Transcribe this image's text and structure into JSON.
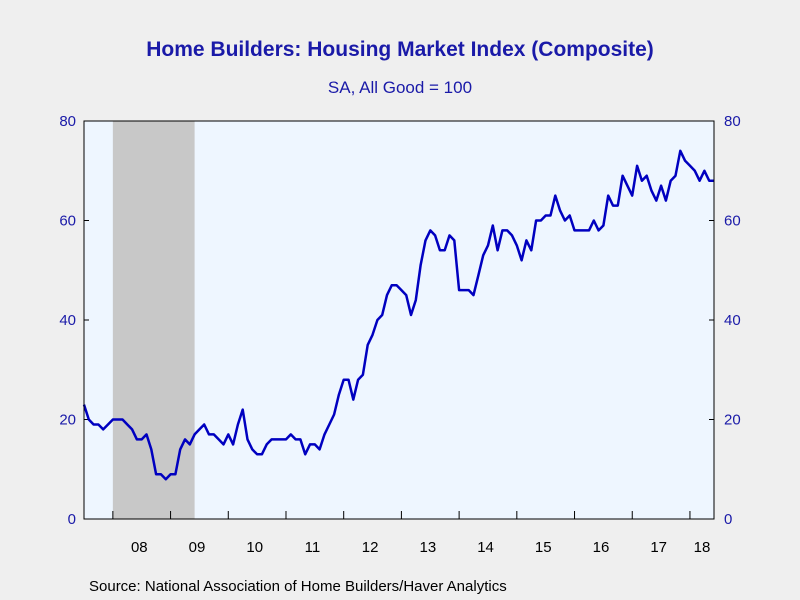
{
  "chart_data": {
    "type": "line",
    "title": "Home Builders: Housing Market Index (Composite)",
    "subtitle": "SA, All Good = 100",
    "source": "Source:  National Association of Home Builders/Haver Analytics",
    "xlabel": "",
    "ylabel": "",
    "ylim": [
      0,
      80
    ],
    "y_ticks": [
      0,
      20,
      40,
      60,
      80
    ],
    "x_ticks": [
      "08",
      "09",
      "10",
      "11",
      "12",
      "13",
      "14",
      "15",
      "16",
      "17",
      "18"
    ],
    "x_range": [
      "2007-07",
      "2018-06"
    ],
    "grid": false,
    "axes": "left and right, same scale",
    "recession_shading": {
      "start": "2008-01",
      "end": "2009-06",
      "color": "#c8c8c8"
    },
    "plot_background": "#eef6ff",
    "series": [
      {
        "color": "#0000c0",
        "start": "2007-07",
        "frequency": "monthly",
        "values": [
          23,
          20,
          19,
          19,
          18,
          19,
          20,
          20,
          20,
          19,
          18,
          16,
          16,
          17,
          14,
          9,
          9,
          8,
          9,
          9,
          14,
          16,
          15,
          17,
          18,
          19,
          17,
          17,
          16,
          15,
          17,
          15,
          19,
          22,
          16,
          14,
          13,
          13,
          15,
          16,
          16,
          16,
          16,
          17,
          16,
          16,
          13,
          15,
          15,
          14,
          17,
          19,
          21,
          25,
          28,
          28,
          24,
          28,
          29,
          35,
          37,
          40,
          41,
          45,
          47,
          47,
          46,
          45,
          41,
          44,
          51,
          56,
          58,
          57,
          54,
          54,
          57,
          56,
          46,
          46,
          46,
          45,
          49,
          53,
          55,
          59,
          54,
          58,
          58,
          57,
          55,
          52,
          56,
          54,
          60,
          60,
          61,
          61,
          65,
          62,
          60,
          61,
          58,
          58,
          58,
          58,
          60,
          58,
          59,
          65,
          63,
          63,
          69,
          67,
          65,
          71,
          68,
          69,
          66,
          64,
          67,
          64,
          68,
          69,
          74,
          72,
          71,
          70,
          68,
          70,
          68,
          68
        ]
      }
    ]
  }
}
